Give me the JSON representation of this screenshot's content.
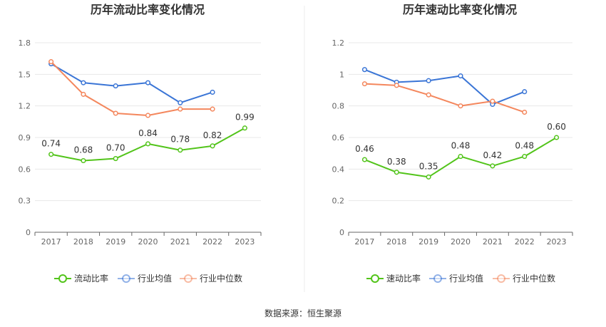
{
  "source_note": "数据来源：恒生聚源",
  "colors": {
    "ratio": "#52c41a",
    "industry_avg": "#3a75d6",
    "industry_median": "#f4875d",
    "grid": "#e8e8e8",
    "axis": "#666666"
  },
  "chart_data": [
    {
      "type": "line",
      "title": "历年流动比率变化情况",
      "categories": [
        "2017",
        "2018",
        "2019",
        "2020",
        "2021",
        "2022",
        "2023"
      ],
      "ylim": [
        0,
        1.8
      ],
      "yticks": [
        "0",
        "0.3",
        "0.6",
        "0.9",
        "1.2",
        "1.5",
        "1.8"
      ],
      "grid": true,
      "legend_position": "bottom",
      "series": [
        {
          "name": "流动比率",
          "key": "ratio",
          "values": [
            0.74,
            0.68,
            0.7,
            0.84,
            0.78,
            0.82,
            0.99
          ],
          "labels": [
            "0.74",
            "0.68",
            "0.70",
            "0.84",
            "0.78",
            "0.82",
            "0.99"
          ]
        },
        {
          "name": "行业均值",
          "key": "industry_avg",
          "values": [
            1.6,
            1.42,
            1.39,
            1.42,
            1.23,
            1.33,
            null
          ]
        },
        {
          "name": "行业中位数",
          "key": "industry_median",
          "values": [
            1.62,
            1.31,
            1.13,
            1.11,
            1.17,
            1.17,
            null
          ]
        }
      ]
    },
    {
      "type": "line",
      "title": "历年速动比率变化情况",
      "categories": [
        "2017",
        "2018",
        "2019",
        "2020",
        "2021",
        "2022",
        "2023"
      ],
      "ylim": [
        0,
        1.2
      ],
      "yticks": [
        "0",
        "0.2",
        "0.4",
        "0.6",
        "0.8",
        "1",
        "1.2"
      ],
      "grid": true,
      "legend_position": "bottom",
      "series": [
        {
          "name": "速动比率",
          "key": "ratio",
          "values": [
            0.46,
            0.38,
            0.35,
            0.48,
            0.42,
            0.48,
            0.6
          ],
          "labels": [
            "0.46",
            "0.38",
            "0.35",
            "0.48",
            "0.42",
            "0.48",
            "0.60"
          ]
        },
        {
          "name": "行业均值",
          "key": "industry_avg",
          "values": [
            1.03,
            0.95,
            0.96,
            0.99,
            0.81,
            0.89,
            null
          ]
        },
        {
          "name": "行业中位数",
          "key": "industry_median",
          "values": [
            0.94,
            0.93,
            0.87,
            0.8,
            0.83,
            0.76,
            null
          ]
        }
      ]
    }
  ]
}
